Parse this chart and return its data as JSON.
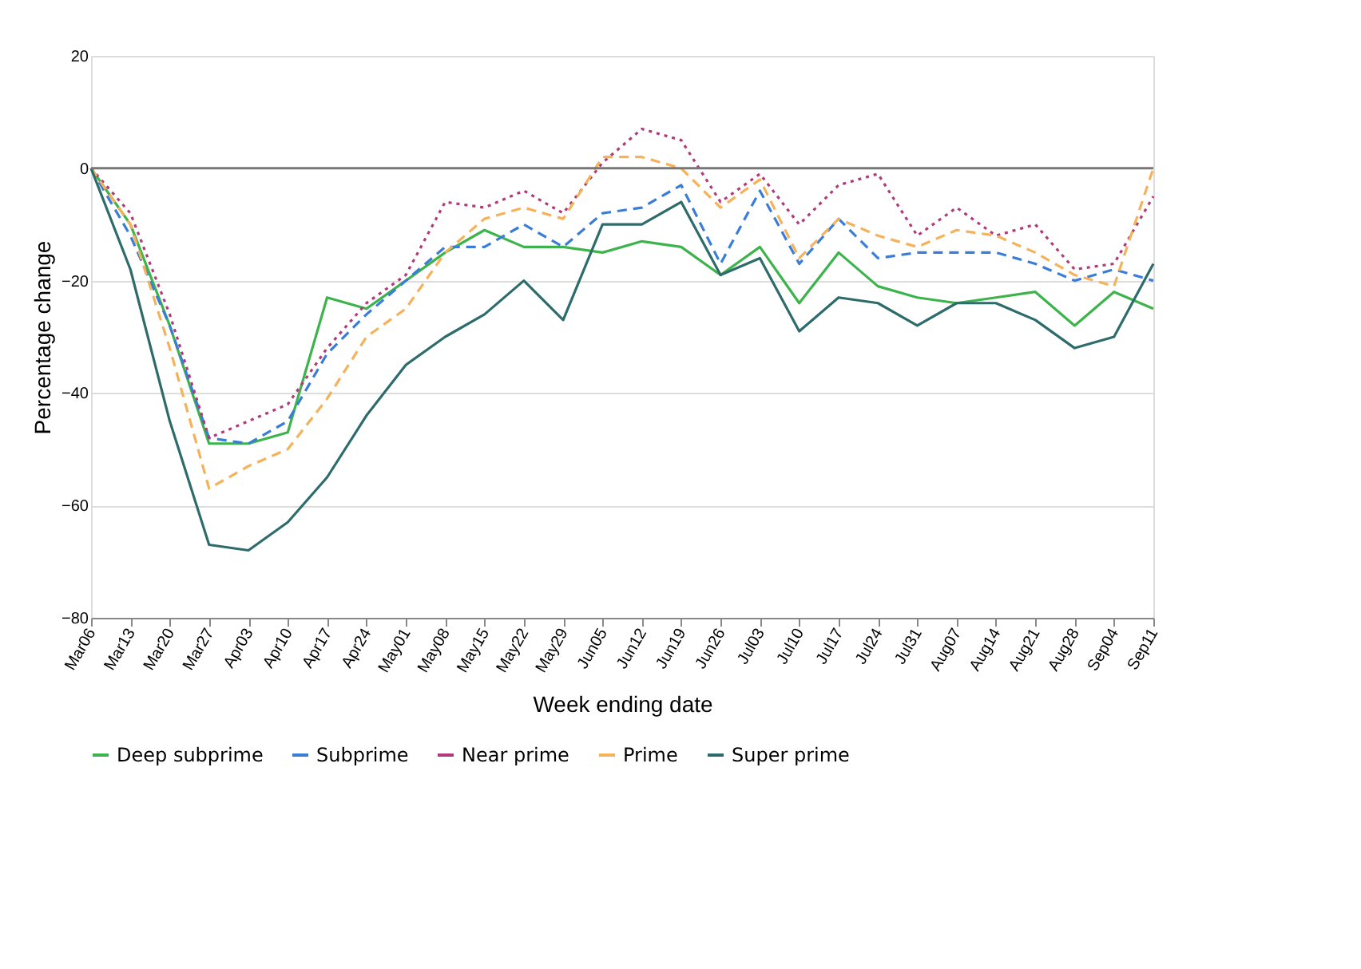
{
  "chart_data": {
    "type": "line",
    "xlabel": "Week ending date",
    "ylabel": "Percentage change",
    "categories": [
      "Mar06",
      "Mar13",
      "Mar20",
      "Mar27",
      "Apr03",
      "Apr10",
      "Apr17",
      "Apr24",
      "May01",
      "May08",
      "May15",
      "May22",
      "May29",
      "Jun05",
      "Jun12",
      "Jun19",
      "Jun26",
      "Jul03",
      "Jul10",
      "Jul17",
      "Jul24",
      "Jul31",
      "Aug07",
      "Aug14",
      "Aug21",
      "Aug28",
      "Sep04",
      "Sep11"
    ],
    "ylim": [
      -80,
      20
    ],
    "yticks": [
      -80,
      -60,
      -40,
      -20,
      0,
      20
    ],
    "grid": "y",
    "legend": "bottom",
    "ref_lines": [
      {
        "axis": "y",
        "value": 0,
        "color": "#777777"
      }
    ],
    "series": [
      {
        "name": "Deep subprime",
        "color": "#3cb44b",
        "line_style": "solid",
        "values": [
          0,
          -10,
          -28,
          -49,
          -49,
          -47,
          -23,
          -25,
          -20,
          -15,
          -11,
          -14,
          -14,
          -15,
          -13,
          -14,
          -19,
          -14,
          -24,
          -15,
          -21,
          -23,
          -24,
          -23,
          -22,
          -28,
          -22,
          -25
        ]
      },
      {
        "name": "Subprime",
        "color": "#3a7dd8",
        "line_style": "dashed",
        "values": [
          0,
          -12,
          -28,
          -48,
          -49,
          -45,
          -33,
          -26,
          -20,
          -14,
          -14,
          -10,
          -14,
          -8,
          -7,
          -3,
          -17,
          -4,
          -17,
          -9,
          -16,
          -15,
          -15,
          -15,
          -17,
          -20,
          -18,
          -20
        ]
      },
      {
        "name": "Near prime",
        "color": "#b03a7a",
        "line_style": "dotted",
        "values": [
          0,
          -8,
          -26,
          -48,
          -45,
          -42,
          -32,
          -24,
          -19,
          -6,
          -7,
          -4,
          -8,
          1,
          7,
          5,
          -6,
          -1,
          -10,
          -3,
          -1,
          -12,
          -7,
          -12,
          -10,
          -18,
          -17,
          -5
        ]
      },
      {
        "name": "Prime",
        "color": "#f5b25a",
        "line_style": "dashed",
        "values": [
          0,
          -10,
          -32,
          -57,
          -53,
          -50,
          -41,
          -30,
          -25,
          -15,
          -9,
          -7,
          -9,
          2,
          2,
          0,
          -7,
          -2,
          -16,
          -9,
          -12,
          -14,
          -11,
          -12,
          -15,
          -19,
          -21,
          0
        ]
      },
      {
        "name": "Super prime",
        "color": "#2e6b6b",
        "line_style": "solid",
        "values": [
          0,
          -18,
          -45,
          -67,
          -68,
          -63,
          -55,
          -44,
          -35,
          -30,
          -26,
          -20,
          -27,
          -10,
          -10,
          -6,
          -19,
          -16,
          -29,
          -23,
          -24,
          -28,
          -24,
          -24,
          -27,
          -32,
          -30,
          -17
        ]
      }
    ]
  }
}
